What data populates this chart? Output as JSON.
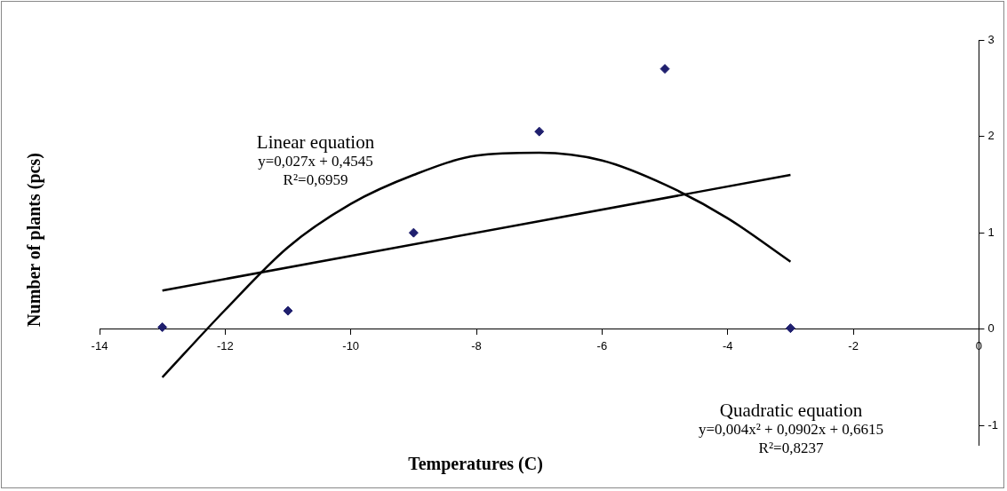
{
  "chart_data": {
    "type": "scatter",
    "xlabel": "Temperatures (C)",
    "ylabel": "Number of plants (pcs)",
    "xlim": [
      -14,
      0
    ],
    "xticks": [
      -14,
      -12,
      -10,
      -8,
      -6,
      -4,
      -2,
      0
    ],
    "ylim": [
      -1.2,
      3
    ],
    "yticks": [
      -1,
      0,
      1,
      2,
      3
    ],
    "grid": false,
    "legend": false,
    "series": [
      {
        "type": "scatter",
        "marker": "diamond",
        "color": "#1f1f6e",
        "x": [
          -13,
          -11,
          -9,
          -7,
          -5,
          -3
        ],
        "values": [
          0.02,
          0.19,
          1.0,
          2.05,
          2.7,
          0.01
        ]
      },
      {
        "type": "line",
        "marker": "none",
        "color": "#000000",
        "x": [
          -13,
          -3
        ],
        "values": [
          0.4,
          1.6
        ]
      },
      {
        "type": "line",
        "marker": "none",
        "color": "#000000",
        "x": [
          -13,
          -12,
          -11,
          -10,
          -9,
          -8,
          -7,
          -6,
          -5,
          -4,
          -3
        ],
        "values": [
          -0.5,
          0.2,
          0.85,
          1.3,
          1.6,
          1.8,
          1.83,
          1.75,
          1.5,
          1.15,
          0.7
        ]
      }
    ],
    "annotations": [
      "Linear equation\ny=0,027x + 0,4545\nR²=0,6959",
      "Quadratic equation\ny=0,004x² + 0,0902x + 0,6615\nR²=0,8237"
    ]
  }
}
